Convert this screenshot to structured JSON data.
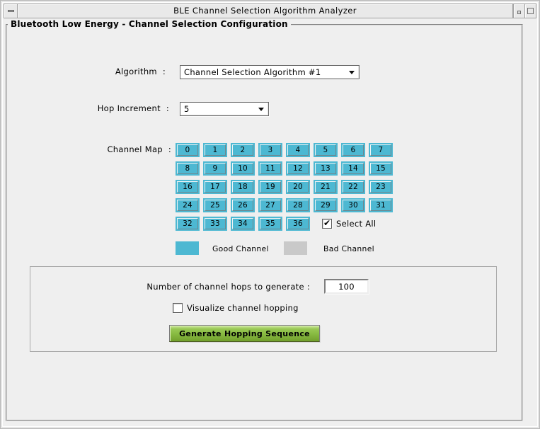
{
  "titlebar": {
    "title": "BLE Channel Selection Algorithm Analyzer"
  },
  "frame": {
    "label": "Bluetooth Low Energy - Channel Selection Configuration"
  },
  "form": {
    "algorithm": {
      "label": "Algorithm  :",
      "value": "Channel Selection Algorithm #1"
    },
    "hop_increment": {
      "label": "Hop Increment  :",
      "value": "5"
    },
    "channel_map": {
      "label": "Channel Map  :",
      "channels": [
        0,
        1,
        2,
        3,
        4,
        5,
        6,
        7,
        8,
        9,
        10,
        11,
        12,
        13,
        14,
        15,
        16,
        17,
        18,
        19,
        20,
        21,
        22,
        23,
        24,
        25,
        26,
        27,
        28,
        29,
        30,
        31,
        32,
        33,
        34,
        35,
        36
      ],
      "select_all": {
        "label": "Select All",
        "checked": true
      }
    },
    "legend": {
      "good_label": "Good Channel",
      "bad_label": "Bad Channel",
      "good_color": "#4db8d2",
      "bad_color": "#c9c9c9"
    },
    "hops": {
      "label": "Number of channel hops to generate :",
      "value": "100"
    },
    "visualize": {
      "label": "Visualize channel hopping",
      "checked": false
    },
    "generate": {
      "label": "Generate Hopping Sequence",
      "color": "#7fb23a"
    }
  }
}
